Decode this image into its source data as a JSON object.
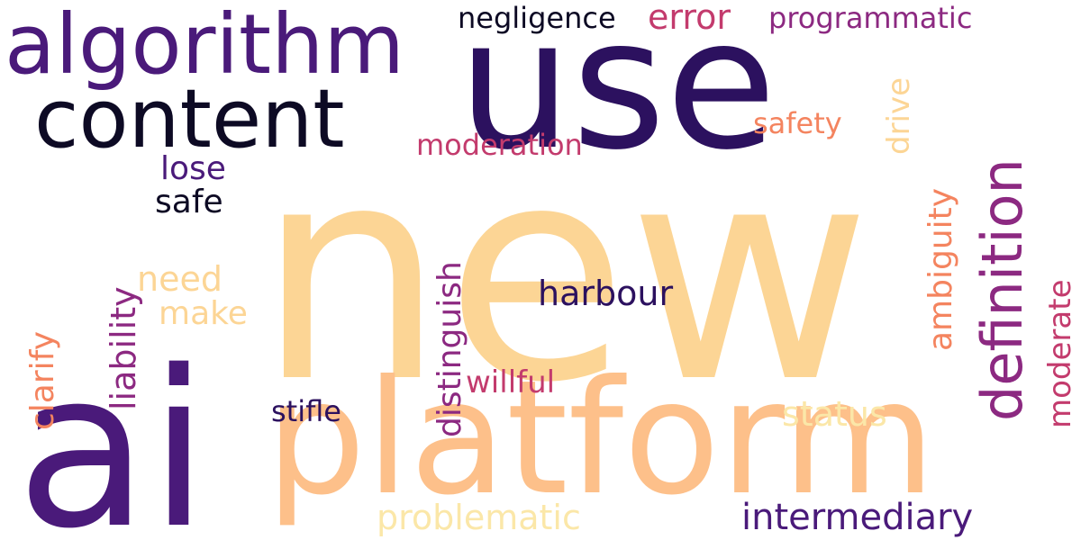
{
  "colors": {
    "background": "#ffffff",
    "deep_purple": "#2c115f",
    "purple": "#4a1a7a",
    "near_black": "#0d0a24",
    "magenta": "#8c2981",
    "rose": "#c33b6d",
    "coral": "#f4845f",
    "peach": "#fdc08a",
    "light_peach": "#fcd595",
    "cream": "#fbe7a8"
  },
  "words": {
    "new": "new",
    "use": "use",
    "ai": "ai",
    "platform": "platform",
    "algorithm": "algorithm",
    "content": "content",
    "definition": "definition",
    "harbour": "harbour",
    "intermediary": "intermediary",
    "problematic": "problematic",
    "negligence": "negligence",
    "error": "error",
    "programmatic": "programmatic",
    "safety": "safety",
    "drive": "drive",
    "moderation": "moderation",
    "lose": "lose",
    "safe": "safe",
    "liability": "liability",
    "distinguish": "distinguish",
    "ambiguity": "ambiguity",
    "moderate": "moderate",
    "clarify": "clarify",
    "need": "need",
    "make": "make",
    "stifle": "stifle",
    "willful": "willful",
    "status": "status"
  }
}
